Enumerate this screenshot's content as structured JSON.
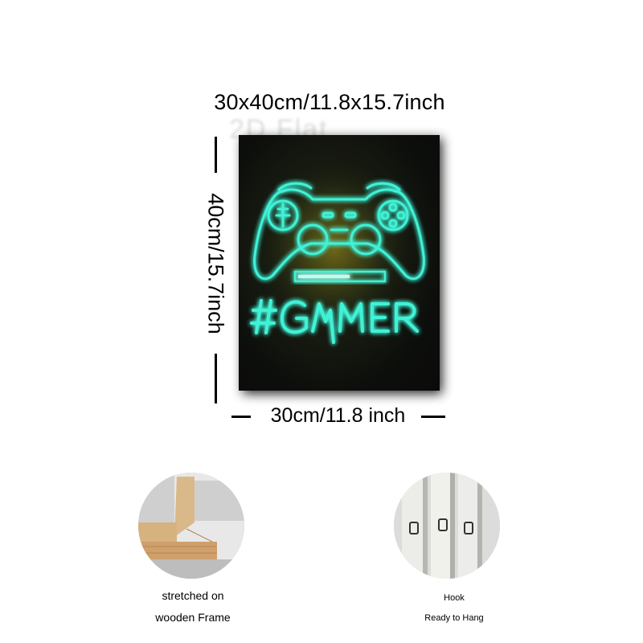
{
  "dimensions": {
    "overall": "30x40cm/11.8x15.7inch",
    "height": "40cm/15.7inch",
    "width": "30cm/11.8 inch"
  },
  "watermark": "2D Flat",
  "canvas": {
    "text": "#GAMER",
    "glow_color": "#3ff2d6",
    "background_color": "#0d0f0c"
  },
  "features": [
    {
      "lines": [
        "stretched on",
        "wooden Frame"
      ]
    },
    {
      "lines": [
        "Hook",
        "Ready to Hang"
      ]
    }
  ]
}
